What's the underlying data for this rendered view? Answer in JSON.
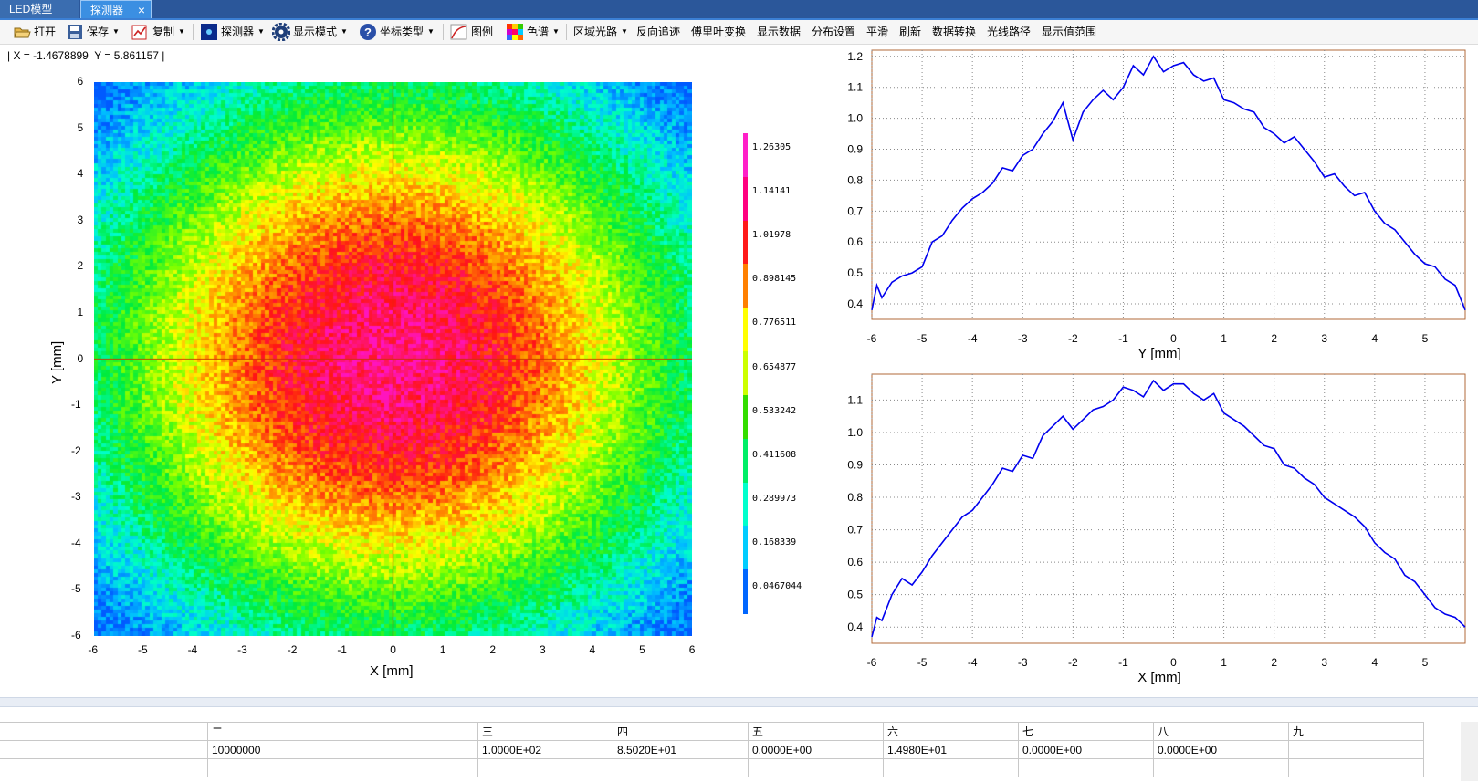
{
  "tabs": [
    {
      "label": "LED模型"
    },
    {
      "label": "探测器"
    }
  ],
  "close_glyph": "×",
  "toolbar": {
    "open": "打开",
    "save": "保存",
    "copy": "复制",
    "detector": "探测器",
    "display_mode": "显示模式",
    "coord_type": "坐标类型",
    "legend": "图例",
    "colormap": "色谱",
    "region_ray": "区域光路",
    "reverse_trace": "反向追迹",
    "fourier": "傅里叶变换",
    "show_data": "显示数据",
    "distribution": "分布设置",
    "smooth": "平滑",
    "refresh": "刷新",
    "data_convert": "数据转换",
    "ray_path": "光线路径",
    "value_range": "显示值范围"
  },
  "coord_readout": "| X = -1.4678899  Y = 5.861157 |",
  "heatmap": {
    "xlabel": "X [mm]",
    "ylabel": "Y [mm]",
    "x_ticks": [
      "-6",
      "-5",
      "-4",
      "-3",
      "-2",
      "-1",
      "0",
      "1",
      "2",
      "3",
      "4",
      "5",
      "6"
    ],
    "y_ticks": [
      "6",
      "5",
      "4",
      "3",
      "2",
      "1",
      "0",
      "-1",
      "-2",
      "-3",
      "-4",
      "-5",
      "-6"
    ],
    "xlim": [
      -6,
      6
    ],
    "ylim": [
      -6,
      6
    ],
    "colorbar_labels": [
      "1.26305",
      "1.14141",
      "1.01978",
      "0.898145",
      "0.776511",
      "0.654877",
      "0.533242",
      "0.411608",
      "0.289973",
      "0.168339",
      "0.0467044"
    ],
    "colorbar_colors": [
      "#ff1fc8",
      "#ff0080",
      "#ff1a1a",
      "#ff8000",
      "#ffff00",
      "#ccff00",
      "#33dd00",
      "#00ee66",
      "#00ffcc",
      "#00ccff",
      "#0066ff"
    ],
    "crosshair_color": "#cc3300"
  },
  "chart_data": [
    {
      "type": "line",
      "xlabel": "Y [mm]",
      "xlim": [
        -6,
        5.8
      ],
      "ylim": [
        0.35,
        1.22
      ],
      "x_ticks": [
        "-6",
        "-5",
        "-4",
        "-3",
        "-2",
        "-1",
        "0",
        "1",
        "2",
        "3",
        "4",
        "5"
      ],
      "y_ticks": [
        "0.4",
        "0.5",
        "0.6",
        "0.7",
        "0.8",
        "0.9",
        "1.0",
        "1.1",
        "1.2"
      ],
      "grid": true,
      "line_color": "#0000ee",
      "frame_color": "#b06a3a",
      "series": [
        {
          "x": [
            -6,
            -5.9,
            -5.8,
            -5.6,
            -5.4,
            -5.2,
            -5,
            -4.8,
            -4.6,
            -4.4,
            -4.2,
            -4,
            -3.8,
            -3.6,
            -3.4,
            -3.2,
            -3,
            -2.8,
            -2.6,
            -2.4,
            -2.2,
            -2,
            -1.8,
            -1.6,
            -1.4,
            -1.2,
            -1,
            -0.8,
            -0.6,
            -0.4,
            -0.2,
            0,
            0.2,
            0.4,
            0.6,
            0.8,
            1,
            1.2,
            1.4,
            1.6,
            1.8,
            2,
            2.2,
            2.4,
            2.6,
            2.8,
            3,
            3.2,
            3.4,
            3.6,
            3.8,
            4,
            4.2,
            4.4,
            4.6,
            4.8,
            5,
            5.2,
            5.4,
            5.6,
            5.8
          ],
          "y": [
            0.38,
            0.46,
            0.42,
            0.47,
            0.49,
            0.5,
            0.52,
            0.6,
            0.62,
            0.67,
            0.71,
            0.74,
            0.76,
            0.79,
            0.84,
            0.83,
            0.88,
            0.9,
            0.95,
            0.99,
            1.05,
            0.93,
            1.02,
            1.06,
            1.09,
            1.06,
            1.1,
            1.17,
            1.14,
            1.2,
            1.15,
            1.17,
            1.18,
            1.14,
            1.12,
            1.13,
            1.06,
            1.05,
            1.03,
            1.02,
            0.97,
            0.95,
            0.92,
            0.94,
            0.9,
            0.86,
            0.81,
            0.82,
            0.78,
            0.75,
            0.76,
            0.7,
            0.66,
            0.64,
            0.6,
            0.56,
            0.53,
            0.52,
            0.48,
            0.46,
            0.38
          ]
        }
      ]
    },
    {
      "type": "line",
      "xlabel": "X [mm]",
      "xlim": [
        -6,
        5.8
      ],
      "ylim": [
        0.35,
        1.18
      ],
      "x_ticks": [
        "-6",
        "-5",
        "-4",
        "-3",
        "-2",
        "-1",
        "0",
        "1",
        "2",
        "3",
        "4",
        "5"
      ],
      "y_ticks": [
        "0.4",
        "0.5",
        "0.6",
        "0.7",
        "0.8",
        "0.9",
        "1.0",
        "1.1"
      ],
      "grid": true,
      "line_color": "#0000ee",
      "frame_color": "#b06a3a",
      "series": [
        {
          "x": [
            -6,
            -5.9,
            -5.8,
            -5.6,
            -5.4,
            -5.2,
            -5,
            -4.8,
            -4.6,
            -4.4,
            -4.2,
            -4,
            -3.8,
            -3.6,
            -3.4,
            -3.2,
            -3,
            -2.8,
            -2.6,
            -2.4,
            -2.2,
            -2,
            -1.8,
            -1.6,
            -1.4,
            -1.2,
            -1,
            -0.8,
            -0.6,
            -0.4,
            -0.2,
            0,
            0.2,
            0.4,
            0.6,
            0.8,
            1,
            1.2,
            1.4,
            1.6,
            1.8,
            2,
            2.2,
            2.4,
            2.6,
            2.8,
            3,
            3.2,
            3.4,
            3.6,
            3.8,
            4,
            4.2,
            4.4,
            4.6,
            4.8,
            5,
            5.2,
            5.4,
            5.6,
            5.8
          ],
          "y": [
            0.37,
            0.43,
            0.42,
            0.5,
            0.55,
            0.53,
            0.57,
            0.62,
            0.66,
            0.7,
            0.74,
            0.76,
            0.8,
            0.84,
            0.89,
            0.88,
            0.93,
            0.92,
            0.99,
            1.02,
            1.05,
            1.01,
            1.04,
            1.07,
            1.08,
            1.1,
            1.14,
            1.13,
            1.11,
            1.16,
            1.13,
            1.15,
            1.15,
            1.12,
            1.1,
            1.12,
            1.06,
            1.04,
            1.02,
            0.99,
            0.96,
            0.95,
            0.9,
            0.89,
            0.86,
            0.84,
            0.8,
            0.78,
            0.76,
            0.74,
            0.71,
            0.66,
            0.63,
            0.61,
            0.56,
            0.54,
            0.5,
            0.46,
            0.44,
            0.43,
            0.4
          ]
        }
      ]
    }
  ],
  "table": {
    "columns": [
      "二",
      "三",
      "四",
      "五",
      "六",
      "七",
      "八",
      "九"
    ],
    "row": [
      "10000000",
      "1.0000E+02",
      "8.5020E+01",
      "0.0000E+00",
      "1.4980E+01",
      "0.0000E+00",
      "0.0000E+00",
      ""
    ]
  }
}
